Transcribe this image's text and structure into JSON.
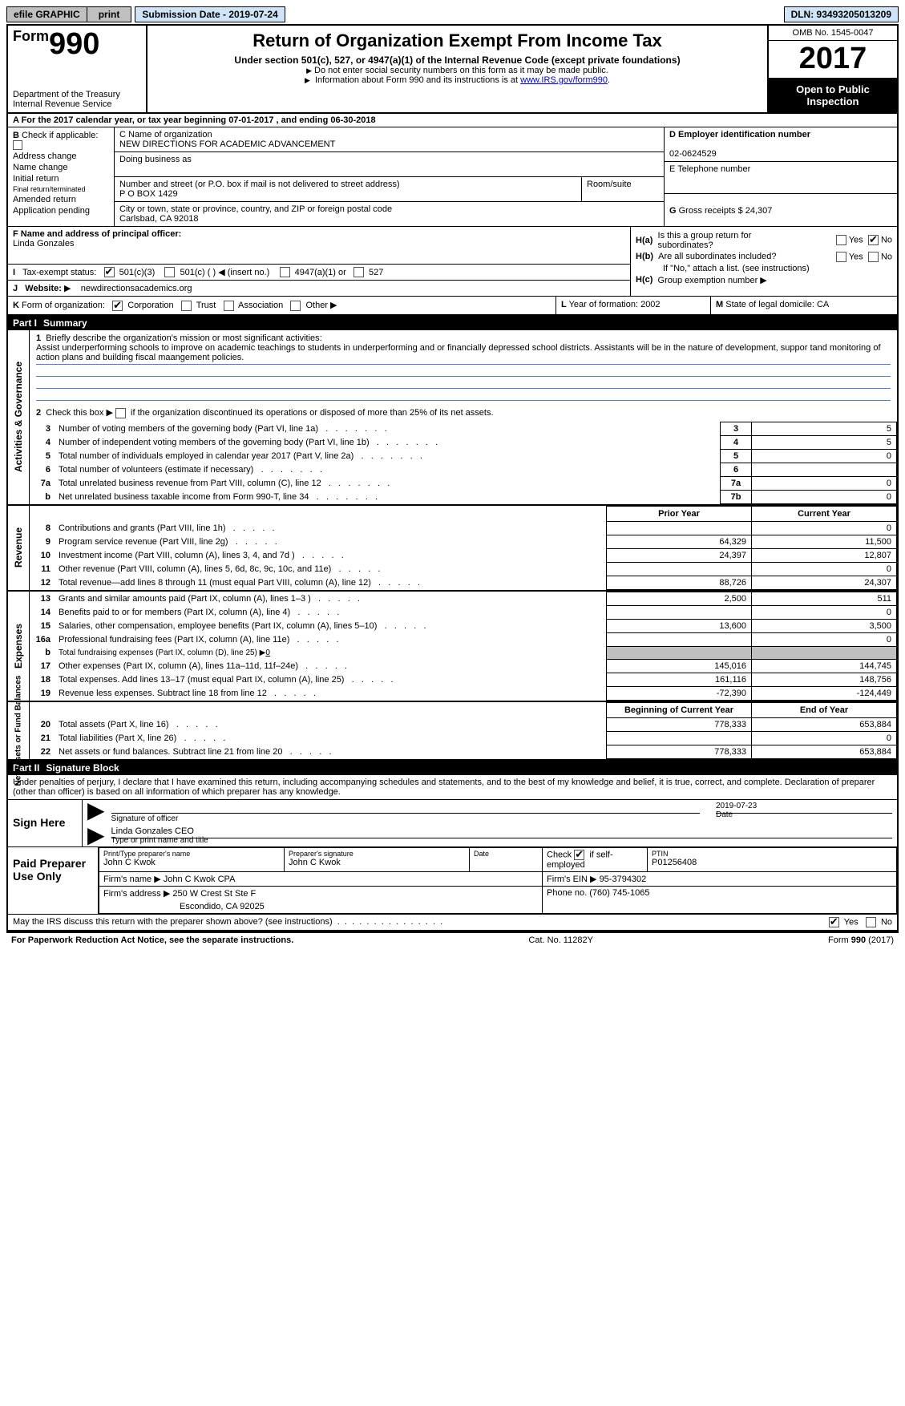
{
  "top_bar": {
    "efile": "efile GRAPHIC",
    "print": "print",
    "submission": "Submission Date - 2019-07-24",
    "dln": "DLN: 93493205013209"
  },
  "header": {
    "form_prefix": "Form",
    "form_no": "990",
    "dept1": "Department of the Treasury",
    "dept2": "Internal Revenue Service",
    "title": "Return of Organization Exempt From Income Tax",
    "subtitle": "Under section 501(c), 527, or 4947(a)(1) of the Internal Revenue Code (except private foundations)",
    "note1": "Do not enter social security numbers on this form as it may be made public.",
    "note2_pre": "Information about Form 990 and its instructions is at ",
    "note2_link": "www.IRS.gov/form990",
    "note2_post": ".",
    "omb": "OMB No. 1545-0047",
    "year": "2017",
    "open1": "Open to Public",
    "open2": "Inspection"
  },
  "row_a": "A  For the 2017 calendar year, or tax year beginning 07-01-2017     , and ending 06-30-2018",
  "col_b": {
    "head": "B",
    "check": "Check if applicable:",
    "addr": "Address change",
    "name": "Name change",
    "init": "Initial return",
    "final": "Final return/terminated",
    "amend": "Amended return",
    "app": "Application pending"
  },
  "col_c": {
    "name_lbl": "C Name of organization",
    "name": "NEW DIRECTIONS FOR ACADEMIC ADVANCEMENT",
    "dba_lbl": "Doing business as",
    "dba": "",
    "street_lbl": "Number and street (or P.O. box if mail is not delivered to street address)",
    "street": "P O BOX 1429",
    "room_lbl": "Room/suite",
    "city_lbl": "City or town, state or province, country, and ZIP or foreign postal code",
    "city": "Carlsbad, CA  92018"
  },
  "col_de": {
    "d_lbl": "D Employer identification number",
    "d_val": "02-0624529",
    "e_lbl": "E Telephone number",
    "e_val": "",
    "g_lbl": "G",
    "g_txt": "Gross receipts $ 24,307"
  },
  "col_f": {
    "f_lbl": "F  Name and address of principal officer:",
    "f_val": "Linda Gonzales",
    "i_lbl": "I",
    "i_txt": "Tax-exempt status:",
    "i_501c3": "501(c)(3)",
    "i_501c": "501(c) ( )",
    "i_ins": "(insert no.)",
    "i_4947": "4947(a)(1) or",
    "i_527": "527",
    "j_lbl": "J",
    "j_txt": "Website:",
    "j_arrow": "▶",
    "j_val": "newdirectionsacademics.org"
  },
  "col_h": {
    "ha_lbl": "H(a)",
    "ha_txt": "Is this a group return for subordinates?",
    "hb_lbl": "H(b)",
    "hb_txt": "Are all subordinates included?",
    "hb_note": "If \"No,\" attach a list. (see instructions)",
    "hc_lbl": "H(c)",
    "hc_txt": "Group exemption number ▶",
    "yes": "Yes",
    "no": "No"
  },
  "row_klm": {
    "k_lbl": "K",
    "k_txt": "Form of organization:",
    "k_corp": "Corporation",
    "k_trust": "Trust",
    "k_assoc": "Association",
    "k_other": "Other ▶",
    "l_lbl": "L",
    "l_txt": "Year of formation: 2002",
    "m_lbl": "M",
    "m_txt": "State of legal domicile: CA"
  },
  "part1": {
    "header_pn": "Part I",
    "header_pt": "Summary",
    "vtab1": "Activities & Governance",
    "vtab2": "Revenue",
    "vtab3": "Expenses",
    "vtab4": "Net Assets or Fund Balances",
    "line1_lbl": "1",
    "line1_txt": "Briefly describe the organization's mission or most significant activities:",
    "line1_val": "Assist underperforming schools to improve on academic teachings to students in underperforming and or financially depressed school districts. Assistants will be in the nature of development, suppor tand monitoring of action plans and building fiscal maangement policies.",
    "line2_n": "2",
    "line2_txt": "Check this box ▶",
    "line2_txt2": "if the organization discontinued its operations or disposed of more than 25% of its net assets.",
    "rows_gov": [
      {
        "n": "3",
        "desc": "Number of voting members of the governing body (Part VI, line 1a)",
        "box": "3",
        "val": "5"
      },
      {
        "n": "4",
        "desc": "Number of independent voting members of the governing body (Part VI, line 1b)",
        "box": "4",
        "val": "5"
      },
      {
        "n": "5",
        "desc": "Total number of individuals employed in calendar year 2017 (Part V, line 2a)",
        "box": "5",
        "val": "0"
      },
      {
        "n": "6",
        "desc": "Total number of volunteers (estimate if necessary)",
        "box": "6",
        "val": ""
      },
      {
        "n": "7a",
        "desc": "Total unrelated business revenue from Part VIII, column (C), line 12",
        "box": "7a",
        "val": "0"
      },
      {
        "n": "b",
        "desc": "Net unrelated business taxable income from Form 990-T, line 34",
        "box": "7b",
        "val": "0"
      }
    ],
    "col_prior": "Prior Year",
    "col_current": "Current Year",
    "rows_rev": [
      {
        "n": "8",
        "desc": "Contributions and grants (Part VIII, line 1h)",
        "p": "",
        "c": "0"
      },
      {
        "n": "9",
        "desc": "Program service revenue (Part VIII, line 2g)",
        "p": "64,329",
        "c": "11,500"
      },
      {
        "n": "10",
        "desc": "Investment income (Part VIII, column (A), lines 3, 4, and 7d )",
        "p": "24,397",
        "c": "12,807"
      },
      {
        "n": "11",
        "desc": "Other revenue (Part VIII, column (A), lines 5, 6d, 8c, 9c, 10c, and 11e)",
        "p": "",
        "c": "0"
      },
      {
        "n": "12",
        "desc": "Total revenue—add lines 8 through 11 (must equal Part VIII, column (A), line 12)",
        "p": "88,726",
        "c": "24,307"
      }
    ],
    "rows_exp": [
      {
        "n": "13",
        "desc": "Grants and similar amounts paid (Part IX, column (A), lines 1–3 )",
        "p": "2,500",
        "c": "511"
      },
      {
        "n": "14",
        "desc": "Benefits paid to or for members (Part IX, column (A), line 4)",
        "p": "",
        "c": "0"
      },
      {
        "n": "15",
        "desc": "Salaries, other compensation, employee benefits (Part IX, column (A), lines 5–10)",
        "p": "13,600",
        "c": "3,500"
      },
      {
        "n": "16a",
        "desc": "Professional fundraising fees (Part IX, column (A), line 11e)",
        "p": "",
        "c": "0"
      }
    ],
    "row_b": {
      "n": "b",
      "desc": "Total fundraising expenses (Part IX, column (D), line 25) ▶",
      "u": "0"
    },
    "rows_exp2": [
      {
        "n": "17",
        "desc": "Other expenses (Part IX, column (A), lines 11a–11d, 11f–24e)",
        "p": "145,016",
        "c": "144,745"
      },
      {
        "n": "18",
        "desc": "Total expenses. Add lines 13–17 (must equal Part IX, column (A), line 25)",
        "p": "161,116",
        "c": "148,756"
      },
      {
        "n": "19",
        "desc": "Revenue less expenses. Subtract line 18 from line 12",
        "p": "-72,390",
        "c": "-124,449"
      }
    ],
    "col_begin": "Beginning of Current Year",
    "col_end": "End of Year",
    "rows_net": [
      {
        "n": "20",
        "desc": "Total assets (Part X, line 16)",
        "p": "778,333",
        "c": "653,884"
      },
      {
        "n": "21",
        "desc": "Total liabilities (Part X, line 26)",
        "p": "",
        "c": "0"
      },
      {
        "n": "22",
        "desc": "Net assets or fund balances. Subtract line 21 from line 20",
        "p": "778,333",
        "c": "653,884"
      }
    ]
  },
  "part2": {
    "header_pn": "Part II",
    "header_pt": "Signature Block",
    "declare": "Under penalties of perjury, I declare that I have examined this return, including accompanying schedules and statements, and to the best of my knowledge and belief, it is true, correct, and complete. Declaration of preparer (other than officer) is based on all information of which preparer has any knowledge.",
    "sign_here": "Sign Here",
    "sig_officer": "Signature of officer",
    "sig_date_val": "2019-07-23",
    "sig_date": "Date",
    "sig_name_val": "Linda Gonzales CEO",
    "sig_name": "Type or print name and title",
    "paid": "Paid Preparer Use Only",
    "prep_name_lbl": "Print/Type preparer's name",
    "prep_name": "John C Kwok",
    "prep_sig_lbl": "Preparer's signature",
    "prep_sig": "John C Kwok",
    "prep_date_lbl": "Date",
    "prep_check": "Check",
    "prep_self": "if self-employed",
    "ptin_lbl": "PTIN",
    "ptin": "P01256408",
    "firm_name_lbl": "Firm's name    ▶",
    "firm_name": "John C Kwok CPA",
    "firm_ein_lbl": "Firm's EIN ▶",
    "firm_ein": "95-3794302",
    "firm_addr_lbl": "Firm's address ▶",
    "firm_addr1": "250 W Crest St Ste F",
    "firm_addr2": "Escondido, CA 92025",
    "phone_lbl": "Phone no.",
    "phone": "(760) 745-1065",
    "discuss": "May the IRS discuss this return with the preparer shown above? (see instructions)",
    "yes": "Yes",
    "no": "No"
  },
  "footer": {
    "left": "For Paperwork Reduction Act Notice, see the separate instructions.",
    "mid": "Cat. No. 11282Y",
    "right_pre": "Form ",
    "right_b": "990",
    "right_post": " (2017)"
  }
}
